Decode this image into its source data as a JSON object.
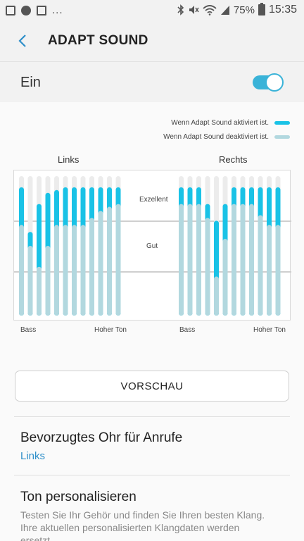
{
  "status_bar": {
    "left_icons": [
      "image-icon",
      "music-icon",
      "mail-icon"
    ],
    "more": "...",
    "battery": "75%",
    "time": "15:35"
  },
  "header": {
    "title": "ADAPT SOUND",
    "back_icon": "chevron-left-icon"
  },
  "toggle_row": {
    "label": "Ein",
    "enabled": true
  },
  "legend": {
    "active": "Wenn Adapt Sound aktiviert ist.",
    "inactive": "Wenn Adapt Sound deaktiviert ist."
  },
  "colors": {
    "active": "#19c2e6",
    "inactive": "#b2d8df",
    "accent": "#3ab3d8",
    "bg_bar": "#ececec"
  },
  "chart": {
    "left_title": "Links",
    "right_title": "Rechts",
    "level_excellent": "Exzellent",
    "level_good": "Gut",
    "left_axis_start": "Bass",
    "left_axis_end": "Hoher Ton",
    "right_axis_start": "Bass",
    "right_axis_end": "Hoher Ton"
  },
  "chart_data": {
    "type": "bar",
    "scale_max": 100,
    "left": {
      "active_top": [
        92,
        60,
        80,
        88,
        90,
        92,
        92,
        92,
        92,
        92,
        92,
        92
      ],
      "inactive_top": [
        65,
        50,
        35,
        50,
        65,
        65,
        65,
        65,
        70,
        75,
        78,
        80
      ]
    },
    "right": {
      "active_top": [
        92,
        92,
        92,
        80,
        68,
        80,
        92,
        92,
        92,
        92,
        92,
        92
      ],
      "inactive_top": [
        80,
        80,
        80,
        70,
        28,
        55,
        80,
        80,
        80,
        72,
        65,
        65
      ]
    }
  },
  "preview_button": "VORSCHAU",
  "settings": [
    {
      "title": "Bevorzugtes Ohr für Anrufe",
      "value": "Links"
    },
    {
      "title": "Ton personalisieren",
      "description": "Testen Sie Ihr Gehör und finden Sie Ihren besten Klang. Ihre aktuellen personalisierten Klangdaten werden ersetzt."
    }
  ]
}
